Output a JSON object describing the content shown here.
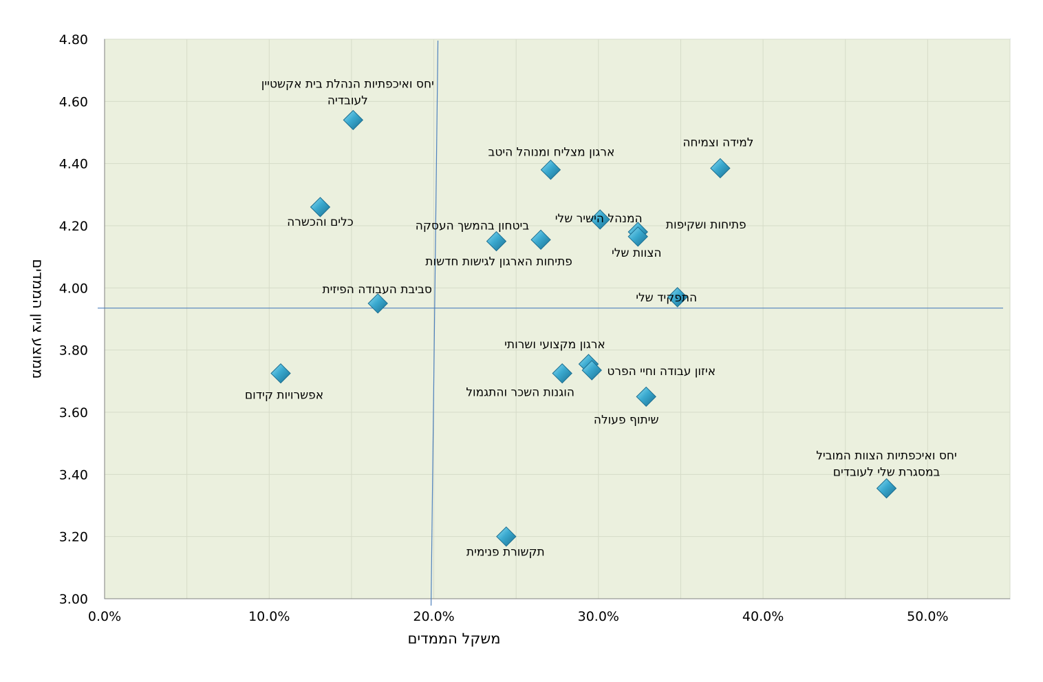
{
  "chart_data": {
    "type": "scatter",
    "xlabel": "משקל הממדים",
    "ylabel": "ממוצע ציון הממדים",
    "xlim": [
      0,
      0.55
    ],
    "ylim": [
      3.0,
      4.8
    ],
    "x_ticks": [
      "0.0%",
      "10.0%",
      "20.0%",
      "30.0%",
      "40.0%",
      "50.0%"
    ],
    "y_ticks": [
      "3.00",
      "3.20",
      "3.40",
      "3.60",
      "3.80",
      "4.00",
      "4.20",
      "4.40",
      "4.60",
      "4.80"
    ],
    "grid": true,
    "legend": "none",
    "reference_lines": {
      "x": 0.2,
      "y": 3.935
    },
    "colors": {
      "plot_background": "#ebf0de",
      "marker": "#3aa9cf",
      "reference_line": "#4f81bd",
      "axis": "#7f7f7f"
    },
    "points": [
      {
        "label": "יחס ואיכפתיות הנהלת בית אקשטיין\nלעובדיה",
        "x": 0.151,
        "y": 4.54
      },
      {
        "label": "כלים והכשרה",
        "x": 0.131,
        "y": 4.26
      },
      {
        "label": "ארגון מצליח ומנוהל היטב",
        "x": 0.271,
        "y": 4.38
      },
      {
        "label": "למידה וצמיחה",
        "x": 0.374,
        "y": 4.385
      },
      {
        "label": "המנהל הישיר שלי",
        "x": 0.301,
        "y": 4.22
      },
      {
        "label": "פתיחות ושקיפות",
        "x": 0.324,
        "y": 4.18
      },
      {
        "label": "הצוות שלי",
        "x": 0.324,
        "y": 4.165
      },
      {
        "label": "ביטחון בהמשך העסקה",
        "x": 0.238,
        "y": 4.15
      },
      {
        "label": "פתיחות הארגון לגישות חדשות",
        "x": 0.265,
        "y": 4.155
      },
      {
        "label": "סביבת העבודה הפיזית",
        "x": 0.166,
        "y": 3.95
      },
      {
        "label": "התפקיד שלי",
        "x": 0.348,
        "y": 3.97
      },
      {
        "label": "ארגון מקצועי ושרותי",
        "x": 0.294,
        "y": 3.755
      },
      {
        "label": "איזון עבודה וחיי הפרט",
        "x": 0.296,
        "y": 3.735
      },
      {
        "label": "הוגנות השכר והתגמול",
        "x": 0.278,
        "y": 3.725
      },
      {
        "label": "אפשרויות קידום",
        "x": 0.107,
        "y": 3.725
      },
      {
        "label": "שיתוף פעולה",
        "x": 0.329,
        "y": 3.65
      },
      {
        "label": "יחס ואיכפתיות הצוות המוביל\nבמסגרת שלי לעובדים",
        "x": 0.475,
        "y": 3.355
      },
      {
        "label": "תקשורת פנימית",
        "x": 0.244,
        "y": 3.2
      }
    ]
  }
}
